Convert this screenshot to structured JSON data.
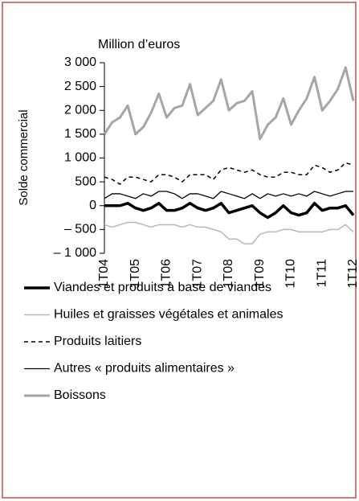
{
  "chart_data": {
    "type": "line",
    "title": "Million d’euros",
    "y_label": "Solde commercial",
    "categories": [
      "1T04",
      null,
      null,
      null,
      "1T05",
      null,
      null,
      null,
      "1T06",
      null,
      null,
      null,
      "1T07",
      null,
      null,
      null,
      "1T08",
      null,
      null,
      null,
      "1T09",
      null,
      null,
      null,
      "1T10",
      null,
      null,
      null,
      "1T11",
      null,
      null,
      null,
      "1T12"
    ],
    "series": [
      {
        "name": "Viandes et produits à base de viandes",
        "color": "#000000",
        "line_width": 3.5,
        "dashed": false,
        "values": [
          0,
          0,
          0,
          50,
          -50,
          -100,
          -50,
          50,
          -100,
          -100,
          -50,
          50,
          -50,
          -100,
          -50,
          50,
          -150,
          -100,
          -50,
          0,
          -150,
          -250,
          -150,
          0,
          -150,
          -200,
          -150,
          50,
          -100,
          -50,
          -50,
          0,
          -200
        ]
      },
      {
        "name": "Huiles et graisses végétales et animales",
        "color": "#b8b8b8",
        "line_width": 1.5,
        "dashed": false,
        "values": [
          -400,
          -450,
          -400,
          -350,
          -350,
          -400,
          -450,
          -400,
          -400,
          -400,
          -450,
          -400,
          -450,
          -450,
          -500,
          -550,
          -700,
          -700,
          -800,
          -800,
          -600,
          -550,
          -550,
          -500,
          -500,
          -550,
          -550,
          -550,
          -550,
          -500,
          -500,
          -400,
          -550
        ]
      },
      {
        "name": "Produits laitiers",
        "color": "#000000",
        "line_width": 1.5,
        "dashed": true,
        "values": [
          600,
          550,
          450,
          600,
          600,
          550,
          500,
          650,
          650,
          600,
          500,
          650,
          650,
          650,
          550,
          750,
          800,
          750,
          700,
          750,
          650,
          600,
          600,
          700,
          700,
          650,
          650,
          850,
          800,
          700,
          750,
          900,
          850
        ]
      },
      {
        "name": "Autres « produits alimentaires »",
        "color": "#000000",
        "line_width": 1.3,
        "dashed": false,
        "values": [
          150,
          250,
          250,
          200,
          150,
          250,
          200,
          300,
          300,
          250,
          150,
          250,
          250,
          200,
          150,
          300,
          250,
          200,
          150,
          250,
          150,
          250,
          200,
          250,
          200,
          250,
          200,
          300,
          250,
          200,
          250,
          300,
          300
        ]
      },
      {
        "name": "Boissons",
        "color": "#a6a6a6",
        "line_width": 3,
        "dashed": false,
        "values": [
          1500,
          1750,
          1850,
          2100,
          1500,
          1650,
          1950,
          2350,
          1850,
          2050,
          2100,
          2550,
          1900,
          2050,
          2200,
          2650,
          2000,
          2150,
          2200,
          2400,
          1400,
          1700,
          1850,
          2250,
          1700,
          2000,
          2250,
          2700,
          2000,
          2200,
          2450,
          2900,
          2200
        ]
      }
    ],
    "ylim": [
      -1000,
      3000
    ],
    "yticks": [
      {
        "value": 3000,
        "label": "3 000"
      },
      {
        "value": 2500,
        "label": "2 500"
      },
      {
        "value": 2000,
        "label": "2 000"
      },
      {
        "value": 1500,
        "label": "1 500"
      },
      {
        "value": 1000,
        "label": "1 000"
      },
      500,
      0,
      {
        "value": -500,
        "label": "– 500"
      },
      {
        "value": -1000,
        "label": "– 1 000"
      }
    ],
    "grid": false
  }
}
